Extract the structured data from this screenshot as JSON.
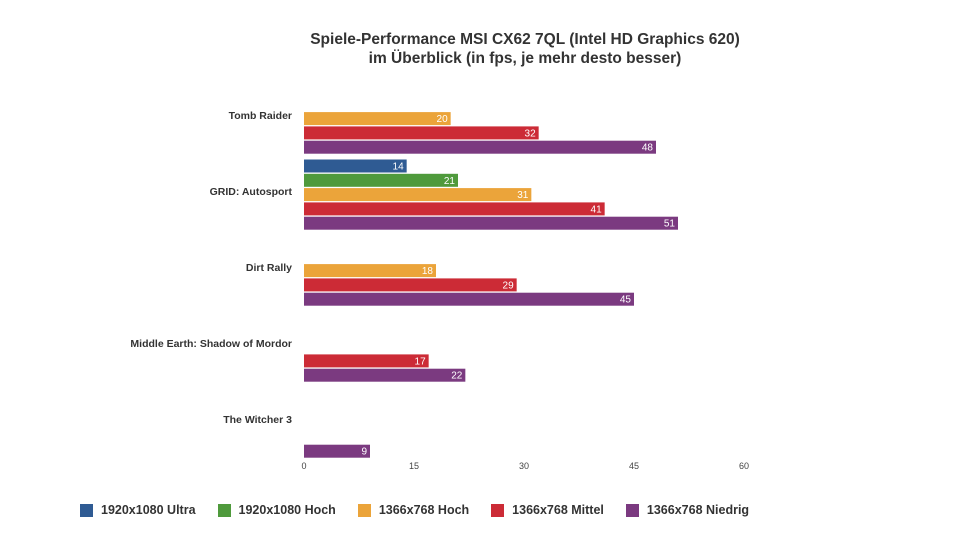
{
  "chart_data": {
    "type": "bar",
    "orientation": "horizontal",
    "title": "Spiele-Performance MSI CX62 7QL (Intel HD Graphics 620)",
    "subtitle": "im Überblick (in fps, je mehr desto besser)",
    "categories": [
      "Tomb Raider",
      "GRID: Autosport",
      "Dirt Rally",
      "Middle Earth: Shadow of Mordor",
      "The Witcher 3"
    ],
    "series": [
      {
        "name": "1920x1080 Ultra",
        "color": "#2f5b93",
        "values": [
          null,
          14,
          null,
          null,
          null
        ]
      },
      {
        "name": "1920x1080 Hoch",
        "color": "#4f9a3c",
        "values": [
          null,
          21,
          null,
          null,
          null
        ]
      },
      {
        "name": "1366x768 Hoch",
        "color": "#eba43a",
        "values": [
          20,
          31,
          18,
          null,
          null
        ]
      },
      {
        "name": "1366x768 Mittel",
        "color": "#cc2b36",
        "values": [
          32,
          41,
          29,
          17,
          null
        ]
      },
      {
        "name": "1366x768 Niedrig",
        "color": "#7b3a80",
        "values": [
          48,
          51,
          45,
          22,
          9
        ]
      }
    ],
    "xlim": [
      0,
      60
    ],
    "xticks": [
      0,
      15,
      30,
      45,
      60
    ],
    "grid": false,
    "legend_position": "bottom",
    "data_labels": true
  }
}
